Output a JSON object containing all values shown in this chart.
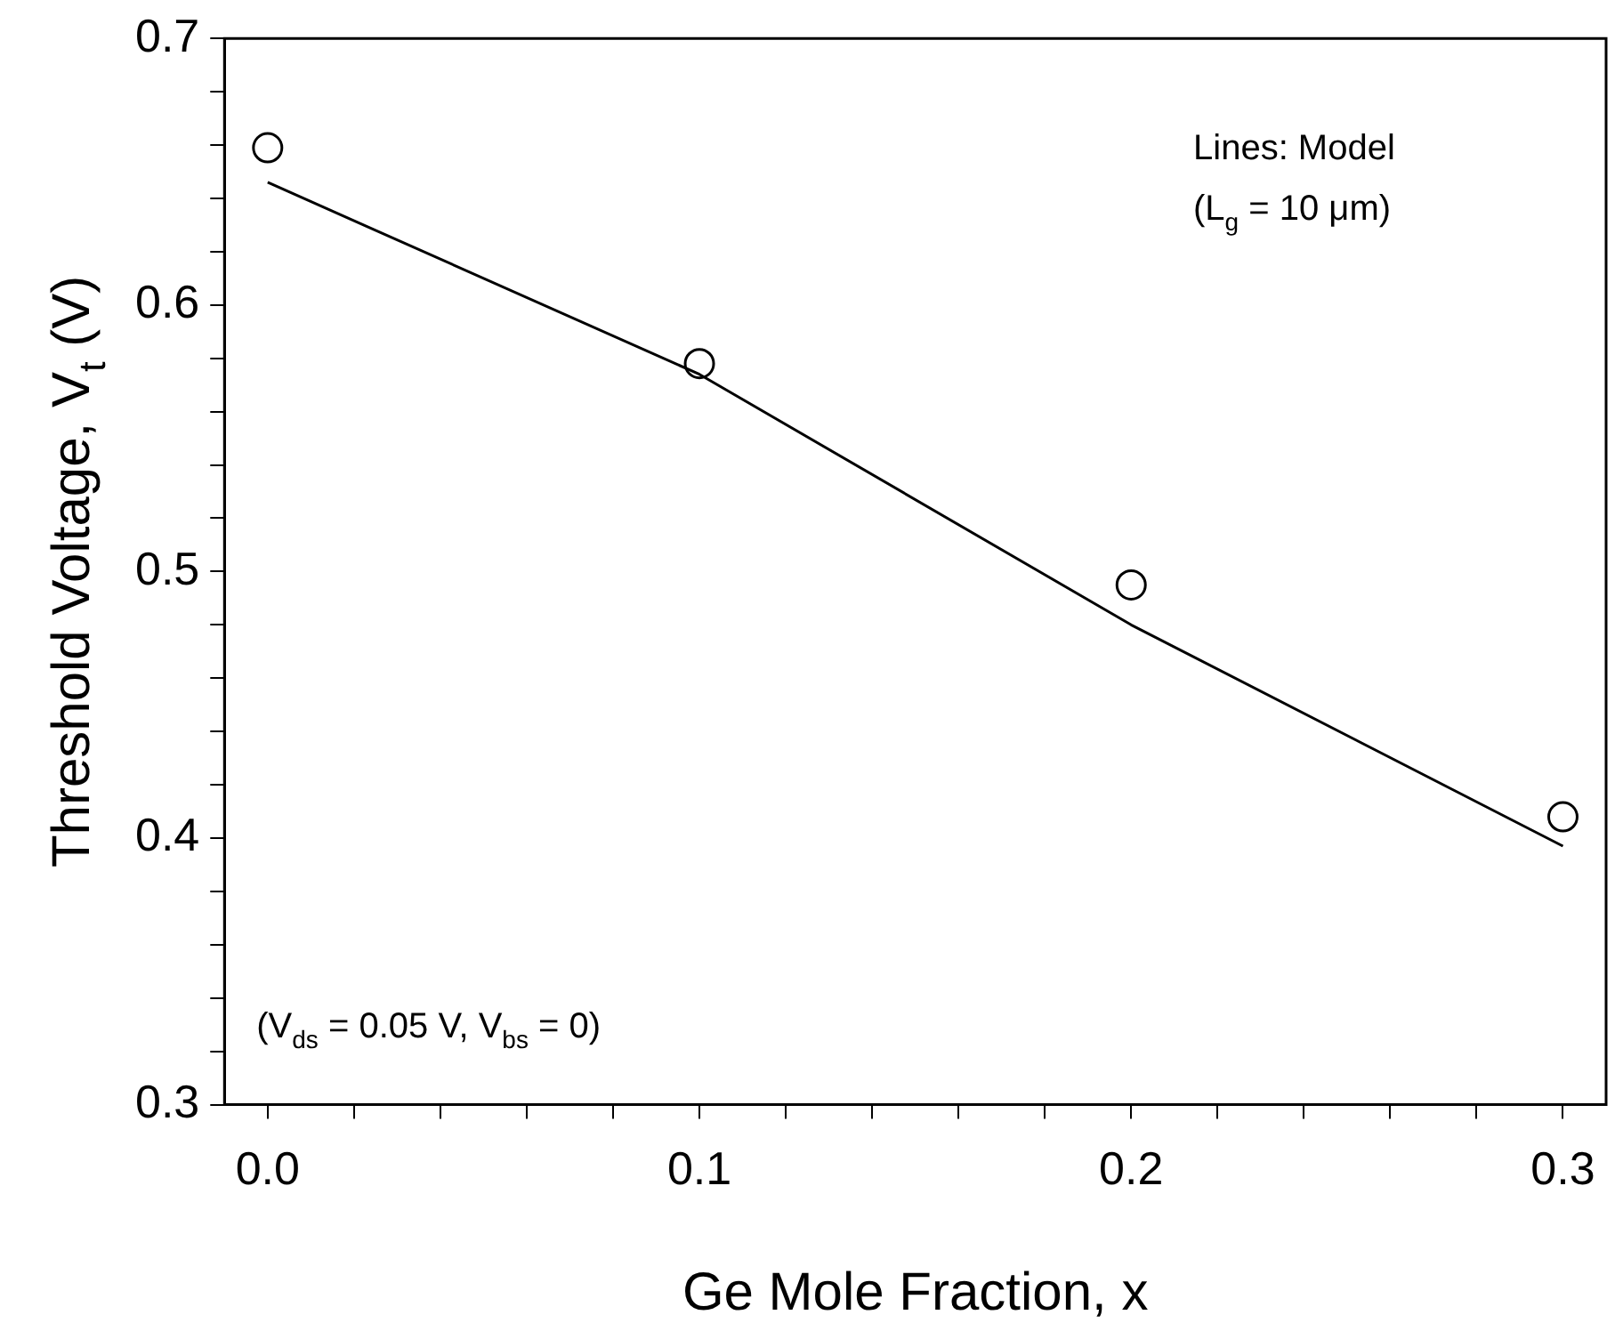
{
  "chart_data": {
    "type": "scatter",
    "xlabel": "Ge Mole Fraction, x",
    "ylabel": "Threshold Voltage, V$_{t}$ (V)",
    "x": [
      0,
      0.1,
      0.2,
      0.3
    ],
    "series": [
      {
        "type": "scatter",
        "color": "#000000",
        "marker": "circle",
        "values": [
          0.659,
          0.578,
          0.495,
          0.408
        ]
      },
      {
        "type": "line",
        "color": "#000000",
        "marker": "none",
        "line_style": "solid",
        "values": [
          0.646,
          0.574,
          0.48,
          0.397
        ]
      }
    ],
    "xlim": [
      -0.01,
      0.31
    ],
    "ylim": [
      0.3,
      0.7
    ],
    "xticks": [
      {
        "value": 0,
        "label": "0.0"
      },
      {
        "value": 0.02,
        "label": null
      },
      {
        "value": 0.04,
        "label": null
      },
      {
        "value": 0.06,
        "label": null
      },
      {
        "value": 0.08,
        "label": null
      },
      0.1,
      {
        "value": 0.12,
        "label": null
      },
      {
        "value": 0.14,
        "label": null
      },
      {
        "value": 0.16,
        "label": null
      },
      {
        "value": 0.18,
        "label": null
      },
      0.2,
      {
        "value": 0.22,
        "label": null
      },
      {
        "value": 0.24,
        "label": null
      },
      {
        "value": 0.26,
        "label": null
      },
      {
        "value": 0.28,
        "label": null
      },
      0.3
    ],
    "yticks": [
      0.3,
      {
        "value": 0.32,
        "label": null
      },
      {
        "value": 0.34,
        "label": null
      },
      {
        "value": 0.36,
        "label": null
      },
      {
        "value": 0.38,
        "label": null
      },
      0.4,
      {
        "value": 0.42,
        "label": null
      },
      {
        "value": 0.44,
        "label": null
      },
      {
        "value": 0.46,
        "label": null
      },
      {
        "value": 0.48,
        "label": null
      },
      0.5,
      {
        "value": 0.52,
        "label": null
      },
      {
        "value": 0.54,
        "label": null
      },
      {
        "value": 0.56,
        "label": null
      },
      {
        "value": 0.58,
        "label": null
      },
      0.6,
      {
        "value": 0.62,
        "label": null
      },
      {
        "value": 0.64,
        "label": null
      },
      {
        "value": 0.66,
        "label": null
      },
      {
        "value": 0.68,
        "label": null
      },
      0.7
    ],
    "grid": false,
    "legend": false,
    "annotations": [
      "Lines: Model",
      "(L$_{g}$ = 10 μm)",
      "(V$_{ds}$ = 0.05 V, V$_{bs}$ = 0)"
    ]
  }
}
